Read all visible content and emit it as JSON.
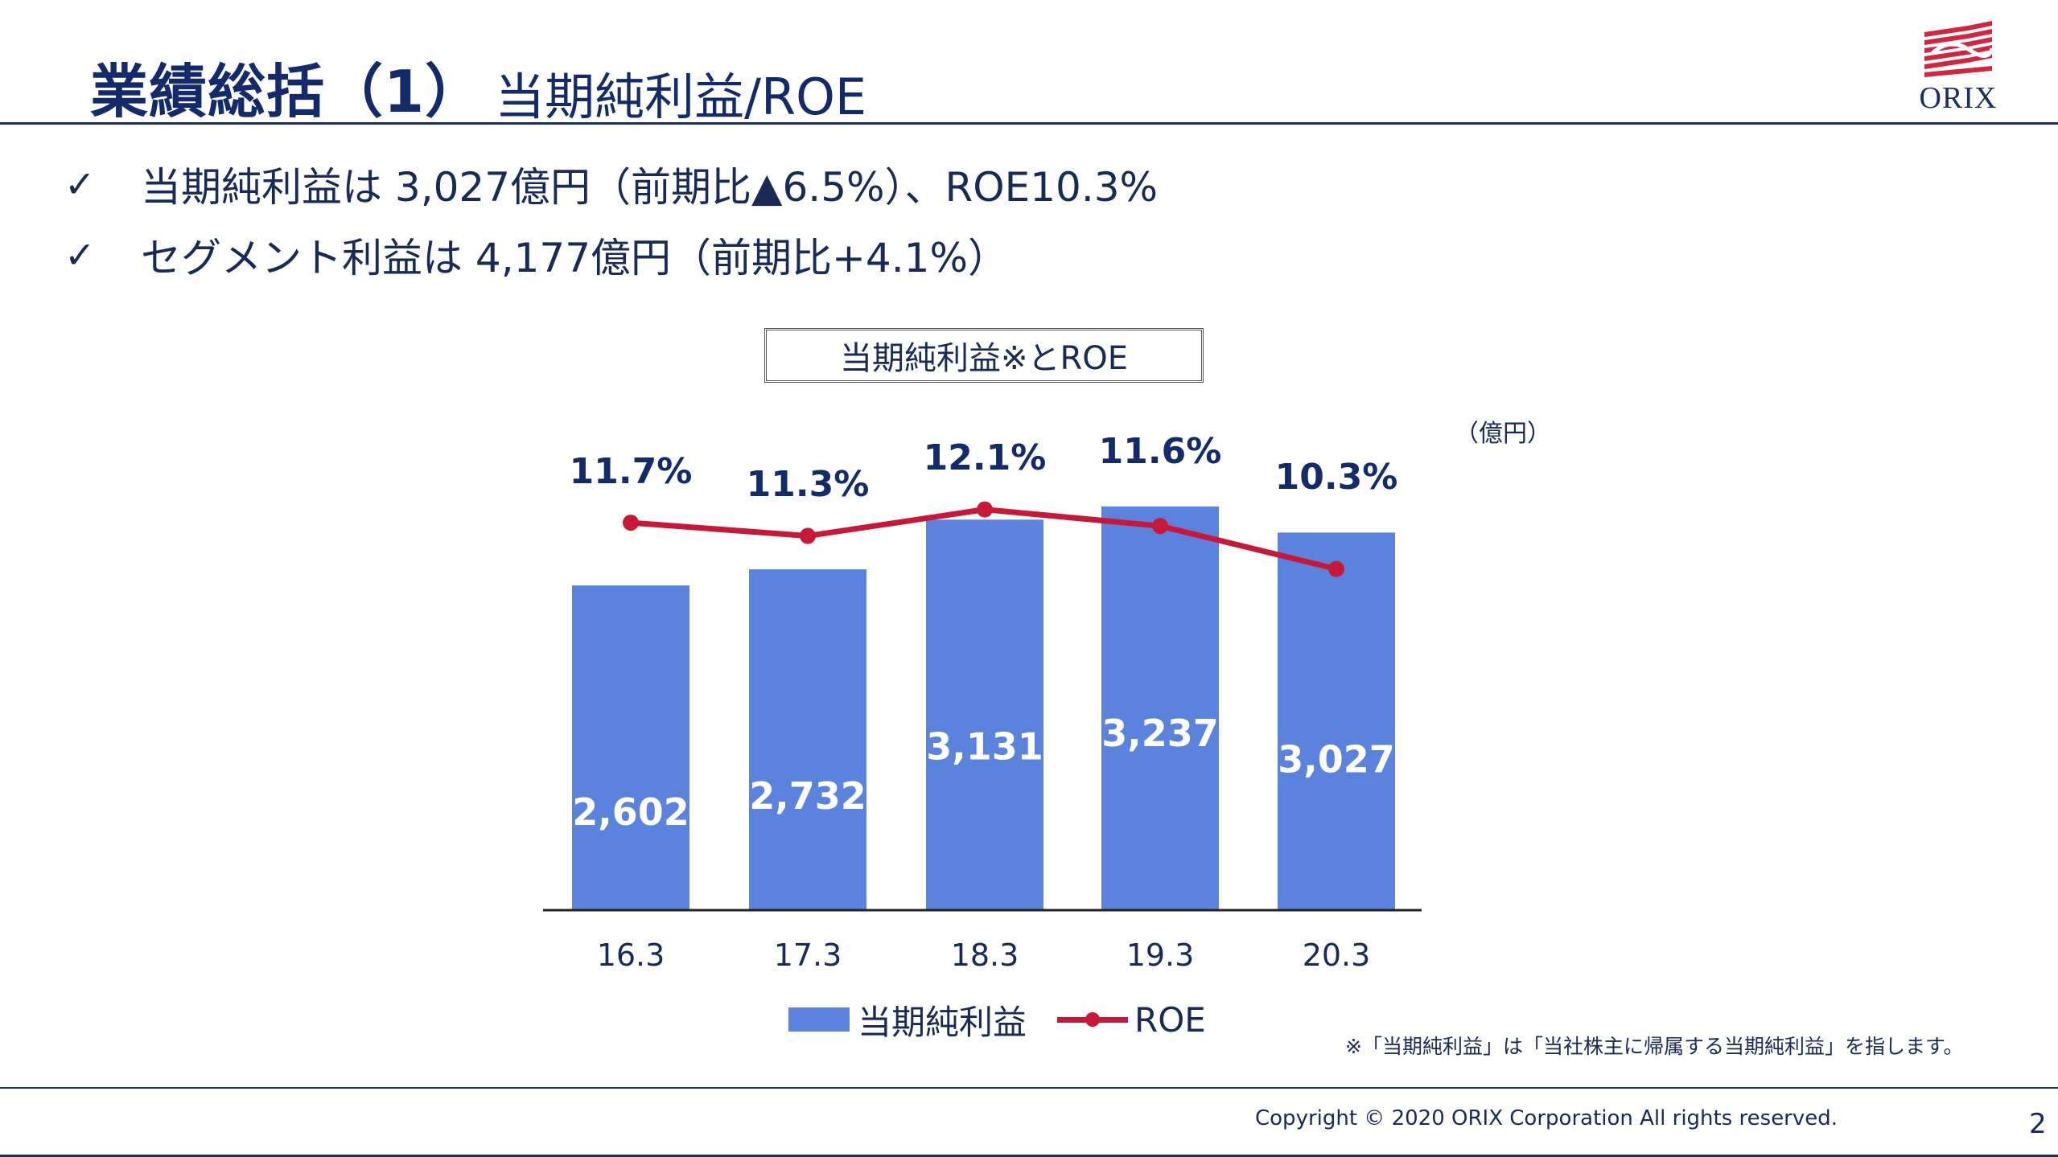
{
  "header": {
    "title_main": "業績総括（1）",
    "title_sub": "当期純利益/ROE",
    "logo_text": "ORIX"
  },
  "bullets": [
    {
      "text": "当期純利益は 3,027億円（前期比▲6.5%）、ROE10.3%"
    },
    {
      "text": "セグメント利益は 4,177億円（前期比+4.1%）"
    }
  ],
  "chart_data": {
    "type": "bar",
    "title": "当期純利益※とROE",
    "unit": "（億円）",
    "categories": [
      "16.3",
      "17.3",
      "18.3",
      "19.3",
      "20.3"
    ],
    "series": [
      {
        "name": "当期純利益",
        "type": "bar",
        "values": [
          2602,
          2732,
          3131,
          3237,
          3027
        ],
        "labels": [
          "2,602",
          "2,732",
          "3,131",
          "3,237",
          "3,027"
        ],
        "color": "#5b82dc"
      },
      {
        "name": "ROE",
        "type": "line",
        "values": [
          11.7,
          11.3,
          12.1,
          11.6,
          10.3
        ],
        "labels": [
          "11.7%",
          "11.3%",
          "12.1%",
          "11.6%",
          "10.3%"
        ],
        "color": "#c8183a"
      }
    ],
    "bar_axis_range": [
      0,
      3850
    ],
    "line_axis_range": [
      0,
      14.5
    ],
    "grid": false,
    "legend": "bottom"
  },
  "note": "※「当期純利益」は「当社株主に帰属する当期純利益」を指します。",
  "footer": {
    "copyright": "Copyright © 2020 ORIX Corporation  All rights reserved.",
    "page_number": "2"
  },
  "colors": {
    "navy": "#1c2d5e",
    "bar": "#5b82dc",
    "line": "#c8183a",
    "logo_red": "#d0263f"
  }
}
